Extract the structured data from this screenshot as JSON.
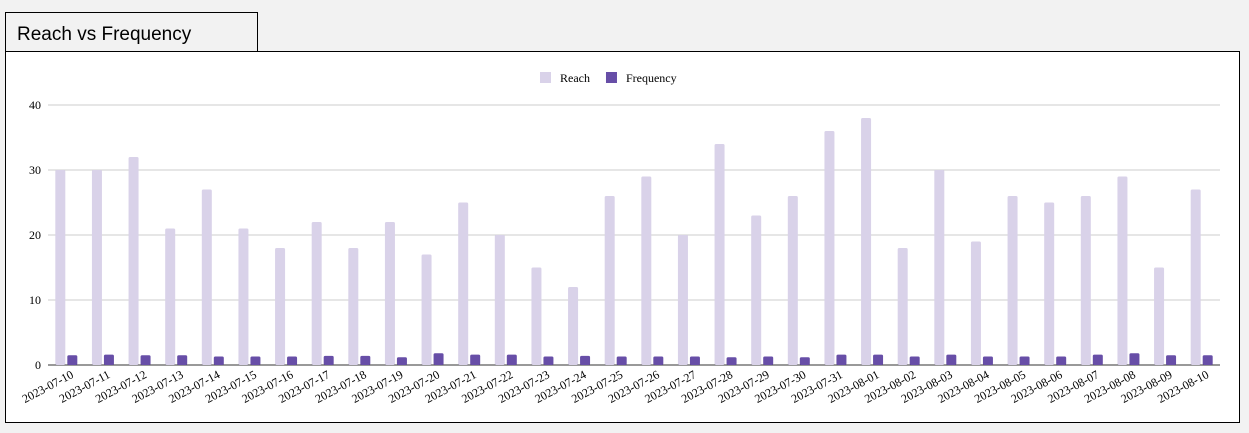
{
  "chart_data": {
    "type": "bar",
    "title": "Reach vs Frequency",
    "categories": [
      "2023-07-10",
      "2023-07-11",
      "2023-07-12",
      "2023-07-13",
      "2023-07-14",
      "2023-07-15",
      "2023-07-16",
      "2023-07-17",
      "2023-07-18",
      "2023-07-19",
      "2023-07-20",
      "2023-07-21",
      "2023-07-22",
      "2023-07-23",
      "2023-07-24",
      "2023-07-25",
      "2023-07-26",
      "2023-07-27",
      "2023-07-28",
      "2023-07-29",
      "2023-07-30",
      "2023-07-31",
      "2023-08-01",
      "2023-08-02",
      "2023-08-03",
      "2023-08-04",
      "2023-08-05",
      "2023-08-06",
      "2023-08-07",
      "2023-08-08",
      "2023-08-09",
      "2023-08-10"
    ],
    "series": [
      {
        "name": "Reach",
        "color": "#d9d2e9",
        "values": [
          30,
          30,
          32,
          21,
          27,
          21,
          18,
          22,
          18,
          22,
          17,
          25,
          20,
          15,
          12,
          26,
          29,
          20,
          34,
          23,
          26,
          36,
          38,
          18,
          30,
          19,
          26,
          25,
          26,
          29,
          15,
          27
        ]
      },
      {
        "name": "Frequency",
        "color": "#674ea7",
        "values": [
          1.5,
          1.6,
          1.5,
          1.5,
          1.3,
          1.3,
          1.3,
          1.4,
          1.4,
          1.2,
          1.8,
          1.6,
          1.6,
          1.3,
          1.4,
          1.3,
          1.3,
          1.3,
          1.2,
          1.3,
          1.2,
          1.6,
          1.6,
          1.3,
          1.6,
          1.3,
          1.3,
          1.3,
          1.6,
          1.8,
          1.5,
          1.5
        ]
      }
    ],
    "ylim": [
      0,
      40
    ],
    "yticks": [
      0,
      10,
      20,
      30,
      40
    ],
    "grid": true,
    "legend": "top"
  }
}
